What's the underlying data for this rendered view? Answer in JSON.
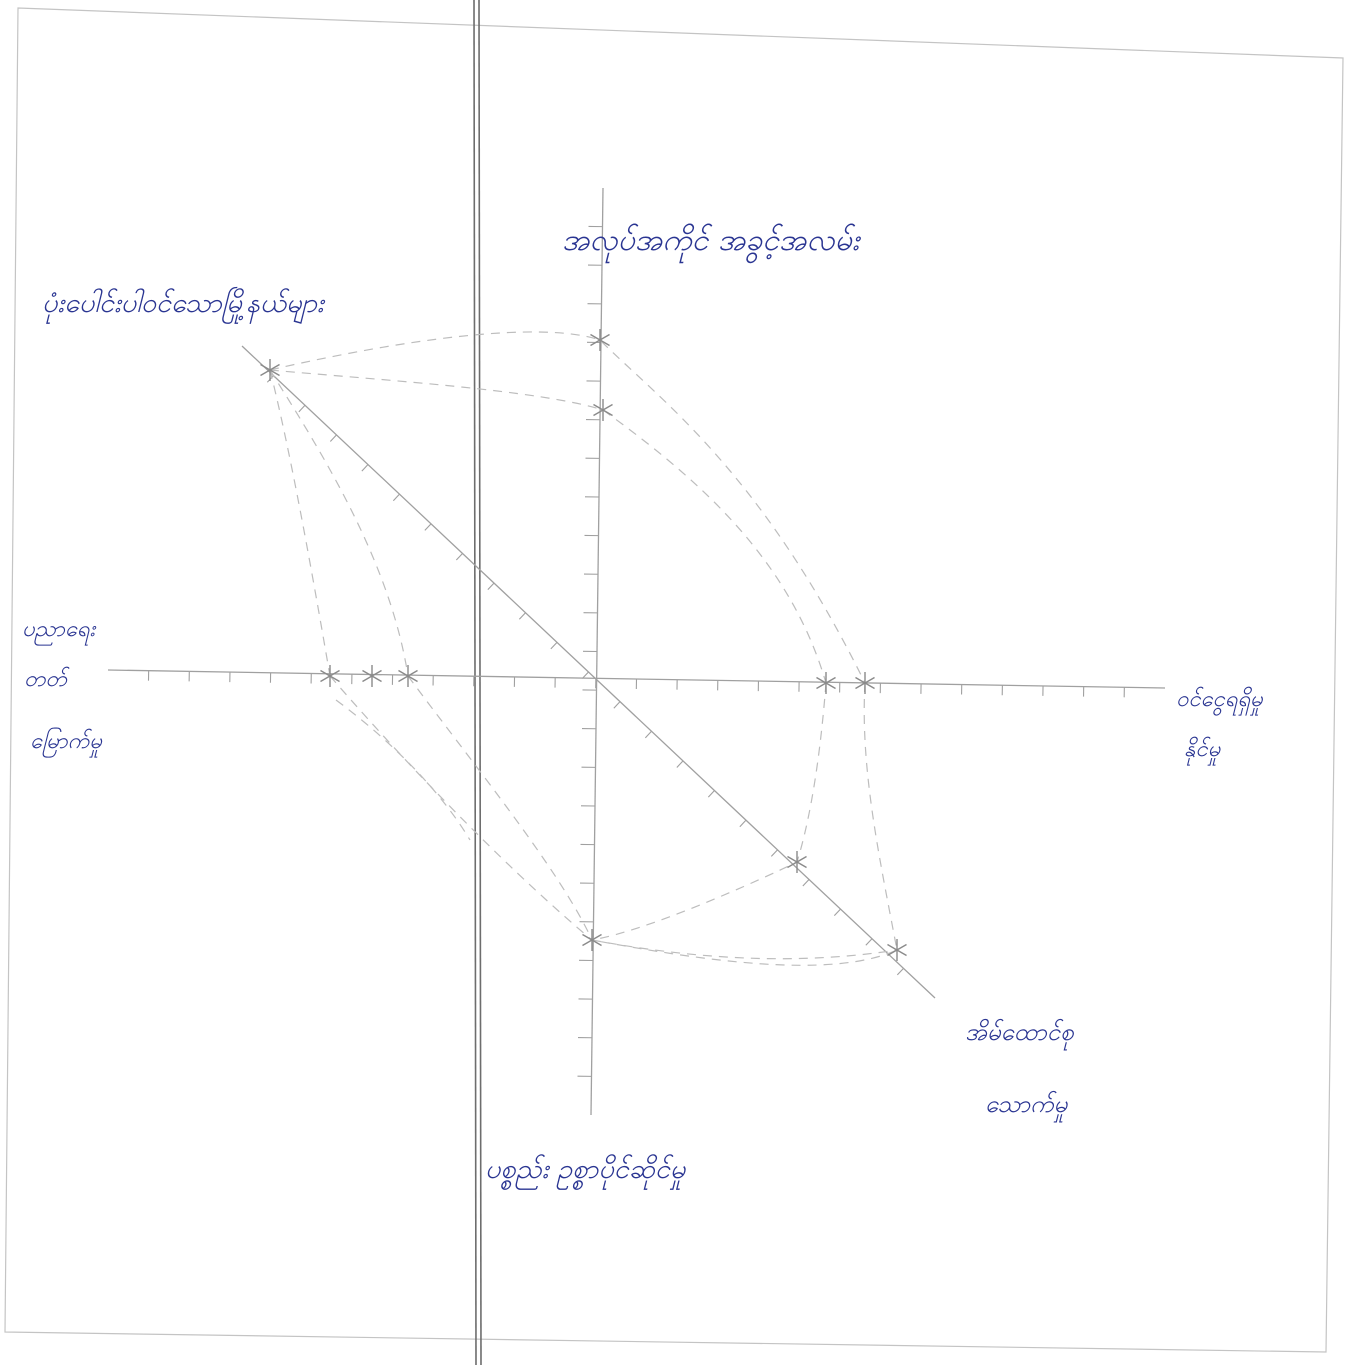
{
  "colors": {
    "paper": "#ffffff",
    "ink": "#2a3592",
    "pencil": "#8a8a8a",
    "pencil_light": "#b8b8b8",
    "margin_line": "#6d6d6d"
  },
  "labels": {
    "top": "အလုပ်အကိုင် အခွင့်အလမ်း",
    "top_left": "ပုံးပေါင်းပါဝင်သောမြို့နယ်များ",
    "left": [
      "ပညာရေး",
      "တတ်",
      "မြောက်မှု"
    ],
    "right": [
      "ဝင်ငွေရရှိမှု",
      "နိုင်မှု"
    ],
    "bottom_right": [
      "အိမ်ထောင်စု",
      "သောက်မှု"
    ],
    "bottom": "ပစ္စည်း ဥစ္စာပိုင်ဆိုင်မှု"
  }
}
